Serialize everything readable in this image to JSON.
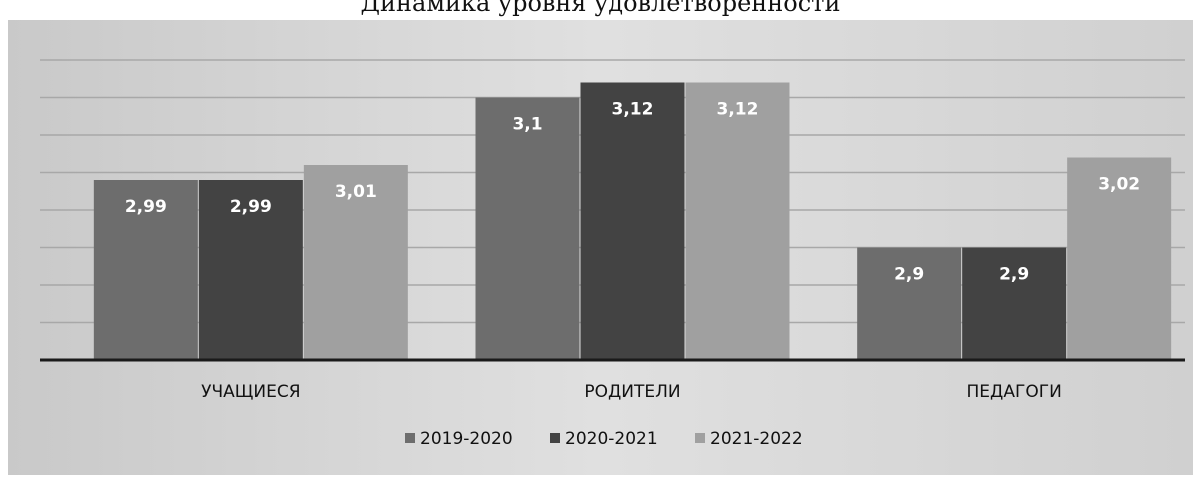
{
  "chart_data": {
    "type": "bar",
    "title": "Динамика уровня удовлетворенности",
    "categories": [
      "УЧАЩИЕСЯ",
      "РОДИТЕЛИ",
      "ПЕДАГОГИ"
    ],
    "series": [
      {
        "name": "2019-2020",
        "values": [
          2.99,
          3.1,
          2.9
        ],
        "labels": [
          "2,99",
          "3,1",
          "2,9"
        ],
        "color": "#6d6d6d"
      },
      {
        "name": "2020-2021",
        "values": [
          2.99,
          3.12,
          2.9
        ],
        "labels": [
          "2,99",
          "3,12",
          "2,9"
        ],
        "color": "#434343"
      },
      {
        "name": "2021-2022",
        "values": [
          3.01,
          3.12,
          3.02
        ],
        "labels": [
          "3,01",
          "3,12",
          "3,02"
        ],
        "color": "#a0a0a0"
      }
    ],
    "xlabel": "",
    "ylabel": "",
    "ylim": [
      2.75,
      3.15
    ],
    "grid": true,
    "legend": "bottom",
    "colors": {
      "background": "#d9d9d9",
      "axis": "#1a1a1a",
      "grid": "#a8a8a8"
    }
  }
}
